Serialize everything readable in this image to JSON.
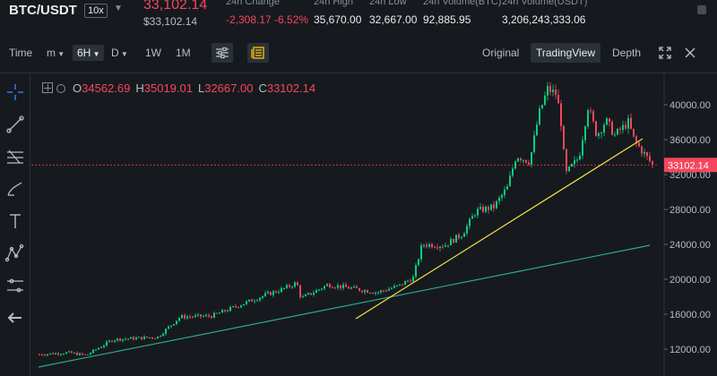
{
  "header": {
    "pair": "BTC/USDT",
    "leverage": "10x",
    "last_price": "33,102.14",
    "last_price_usd": "$33,102.14",
    "stats": [
      {
        "label": "24h Change",
        "value": "-2,308.17 -6.52%",
        "negative": true
      },
      {
        "label": "24h High",
        "value": "35,670.00",
        "negative": false
      },
      {
        "label": "24h Low",
        "value": "32,667.00",
        "negative": false
      },
      {
        "label": "24h Volume(BTC)",
        "value": "92,885.95",
        "negative": false
      },
      {
        "label": "24h Volume(USDT)",
        "value": "3,206,243,333.06",
        "negative": false
      }
    ]
  },
  "toolbar": {
    "time_label": "Time",
    "intervals": [
      {
        "label": "m",
        "dropdown": true,
        "selected": false
      },
      {
        "label": "6H",
        "dropdown": true,
        "selected": true
      },
      {
        "label": "D",
        "dropdown": true,
        "selected": false
      },
      {
        "label": "1W",
        "dropdown": false,
        "selected": false
      },
      {
        "label": "1M",
        "dropdown": false,
        "selected": false
      }
    ],
    "views": [
      "Original",
      "TradingView",
      "Depth"
    ],
    "active_view": "TradingView"
  },
  "chart": {
    "ohlc": {
      "open_label": "O",
      "open": "34562.69",
      "high_label": "H",
      "high": "35019.01",
      "low_label": "L",
      "low": "32667.00",
      "close_label": "C",
      "close": "33102.14"
    },
    "price_axis": [
      "40000.00",
      "36000.00",
      "32000.00",
      "28000.00",
      "24000.00",
      "20000.00",
      "16000.00",
      "12000.00"
    ],
    "current_price_label": "33102.14",
    "current_price": 33102.14,
    "colors": {
      "up": "#0ecb81",
      "down": "#f6465d",
      "trend_yellow": "#f0e442",
      "trend_green": "#2ea88a"
    }
  },
  "tools": [
    "crosshair-icon",
    "trend-line-icon",
    "fib-icon",
    "brush-icon",
    "text-icon",
    "pattern-icon",
    "measure-icon",
    "back-arrow-icon"
  ]
}
